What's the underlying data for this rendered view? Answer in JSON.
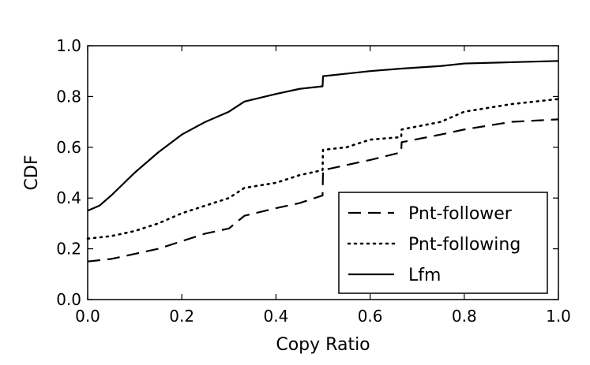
{
  "chart_data": {
    "type": "line",
    "title": "",
    "xlabel": "Copy Ratio",
    "ylabel": "CDF",
    "xlim": [
      0.0,
      1.0
    ],
    "ylim": [
      0.0,
      1.0
    ],
    "xticks": [
      "0.0",
      "0.2",
      "0.4",
      "0.6",
      "0.8",
      "1.0"
    ],
    "yticks": [
      "0.0",
      "0.2",
      "0.4",
      "0.6",
      "0.8",
      "1.0"
    ],
    "grid": false,
    "legend_position": "lower-right",
    "series": [
      {
        "name": "Pnt-follower",
        "style": "dashed",
        "color": "#000000",
        "x": [
          0.0,
          0.05,
          0.1,
          0.15,
          0.2,
          0.25,
          0.3,
          0.333,
          0.4,
          0.45,
          0.499,
          0.5,
          0.55,
          0.6,
          0.666,
          0.667,
          0.75,
          0.8,
          0.9,
          1.0
        ],
        "y": [
          0.15,
          0.16,
          0.18,
          0.2,
          0.23,
          0.26,
          0.28,
          0.33,
          0.36,
          0.38,
          0.41,
          0.51,
          0.53,
          0.55,
          0.58,
          0.62,
          0.65,
          0.67,
          0.7,
          0.71
        ]
      },
      {
        "name": "Pnt-following",
        "style": "dotted",
        "color": "#000000",
        "x": [
          0.0,
          0.05,
          0.1,
          0.15,
          0.2,
          0.25,
          0.3,
          0.333,
          0.4,
          0.45,
          0.499,
          0.5,
          0.55,
          0.6,
          0.666,
          0.667,
          0.75,
          0.8,
          0.9,
          1.0
        ],
        "y": [
          0.24,
          0.25,
          0.27,
          0.3,
          0.34,
          0.37,
          0.4,
          0.44,
          0.46,
          0.49,
          0.51,
          0.59,
          0.6,
          0.63,
          0.64,
          0.67,
          0.7,
          0.74,
          0.77,
          0.79
        ]
      },
      {
        "name": "Lfm",
        "style": "solid",
        "color": "#000000",
        "x": [
          0.0,
          0.025,
          0.05,
          0.1,
          0.15,
          0.2,
          0.25,
          0.3,
          0.333,
          0.4,
          0.45,
          0.499,
          0.5,
          0.55,
          0.6,
          0.667,
          0.75,
          0.8,
          0.9,
          1.0
        ],
        "y": [
          0.35,
          0.37,
          0.41,
          0.5,
          0.58,
          0.65,
          0.7,
          0.74,
          0.78,
          0.81,
          0.83,
          0.84,
          0.88,
          0.89,
          0.9,
          0.91,
          0.92,
          0.93,
          0.935,
          0.94
        ]
      }
    ]
  }
}
